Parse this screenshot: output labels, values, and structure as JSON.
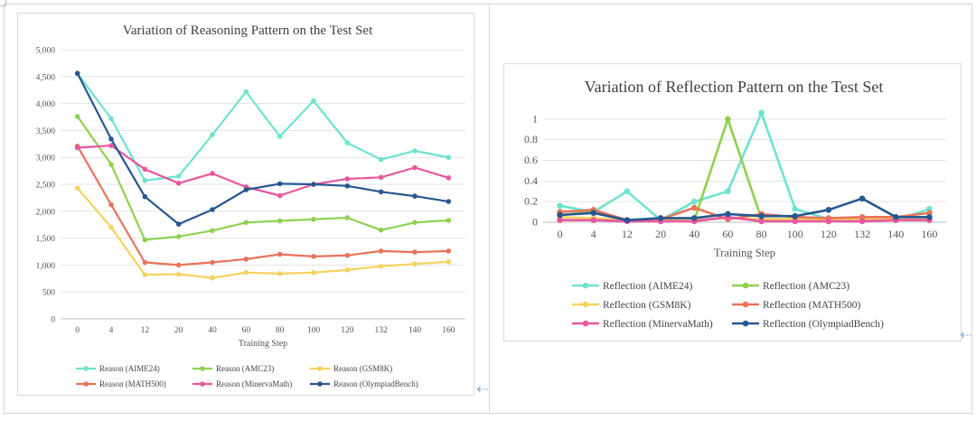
{
  "chart_data": [
    {
      "type": "line",
      "title": "Variation of Reasoning Pattern on the Test Set",
      "xlabel": "Training Step",
      "ylabel": "",
      "categories": [
        "0",
        "4",
        "12",
        "20",
        "40",
        "60",
        "80",
        "100",
        "120",
        "132",
        "140",
        "160"
      ],
      "ylim": [
        0,
        5000
      ],
      "yticks": [
        "0",
        "500",
        "1,000",
        "1,500",
        "2,000",
        "2,500",
        "3,000",
        "3,500",
        "4,000",
        "4,500",
        "5,000"
      ],
      "ytick_values": [
        0,
        500,
        1000,
        1500,
        2000,
        2500,
        3000,
        3500,
        4000,
        4500,
        5000
      ],
      "grid": true,
      "legend_position": "bottom",
      "series": [
        {
          "name": "Reason (AIME24)",
          "color": "#6ee3cf",
          "values": [
            4560,
            3720,
            2570,
            2650,
            3420,
            4220,
            3390,
            4050,
            3270,
            2960,
            3120,
            3000
          ]
        },
        {
          "name": "Reason (AMC23)",
          "color": "#8fd14f",
          "values": [
            3760,
            2870,
            1470,
            1530,
            1640,
            1790,
            1820,
            1850,
            1880,
            1650,
            1790,
            1830
          ]
        },
        {
          "name": "Reason (GSM8K)",
          "color": "#f4d35e",
          "values": [
            2430,
            1700,
            820,
            830,
            760,
            860,
            840,
            860,
            910,
            980,
            1020,
            1060
          ]
        },
        {
          "name": "Reason (MATH500)",
          "color": "#e8735a",
          "values": [
            3210,
            2120,
            1050,
            1000,
            1050,
            1110,
            1200,
            1160,
            1180,
            1260,
            1240,
            1260
          ]
        },
        {
          "name": "Reason (MinervaMath)",
          "color": "#e8579f",
          "values": [
            3180,
            3220,
            2780,
            2520,
            2700,
            2450,
            2290,
            2500,
            2600,
            2630,
            2810,
            2620
          ]
        },
        {
          "name": "Reason (OlympiadBench)",
          "color": "#26578f",
          "values": [
            4560,
            3340,
            2270,
            1760,
            2030,
            2400,
            2510,
            2500,
            2470,
            2360,
            2280,
            2180
          ]
        }
      ]
    },
    {
      "type": "line",
      "title": "Variation of Reflection Pattern on the Test Set",
      "xlabel": "Training Step",
      "ylabel": "",
      "categories": [
        "0",
        "4",
        "12",
        "20",
        "40",
        "60",
        "80",
        "100",
        "120",
        "132",
        "140",
        "160"
      ],
      "ylim": [
        0,
        1.2
      ],
      "yticks": [
        "0",
        "0.2",
        "0.4",
        "0.6",
        "0.8",
        "1"
      ],
      "ytick_values": [
        0,
        0.2,
        0.4,
        0.6,
        0.8,
        1
      ],
      "grid": true,
      "legend_position": "bottom",
      "series": [
        {
          "name": "Reflection (AIME24)",
          "color": "#6ee3cf",
          "values": [
            0.16,
            0.1,
            0.3,
            0.02,
            0.2,
            0.3,
            1.06,
            0.13,
            0.03,
            0.03,
            0.02,
            0.13
          ]
        },
        {
          "name": "Reflection (AMC23)",
          "color": "#8fd14f",
          "values": [
            0.07,
            0.1,
            0.02,
            0.03,
            0.02,
            1.0,
            0.03,
            0.03,
            0.03,
            0.03,
            0.02,
            0.05
          ]
        },
        {
          "name": "Reflection (GSM8K)",
          "color": "#f4d35e",
          "values": [
            0.05,
            0.04,
            0.02,
            0.02,
            0.02,
            0.04,
            0.03,
            0.03,
            0.03,
            0.03,
            0.03,
            0.04
          ]
        },
        {
          "name": "Reflection (MATH500)",
          "color": "#e8735a",
          "values": [
            0.1,
            0.12,
            0.02,
            0.03,
            0.14,
            0.03,
            0.08,
            0.05,
            0.04,
            0.05,
            0.05,
            0.09
          ]
        },
        {
          "name": "Reflection (MinervaMath)",
          "color": "#e8579f",
          "values": [
            0.02,
            0.02,
            0.01,
            0.01,
            0.01,
            0.05,
            0.01,
            0.01,
            0.01,
            0.01,
            0.02,
            0.02
          ]
        },
        {
          "name": "Reflection (OlympiadBench)",
          "color": "#26578f",
          "values": [
            0.07,
            0.09,
            0.02,
            0.04,
            0.04,
            0.08,
            0.06,
            0.06,
            0.12,
            0.23,
            0.05,
            0.05
          ]
        }
      ]
    }
  ]
}
